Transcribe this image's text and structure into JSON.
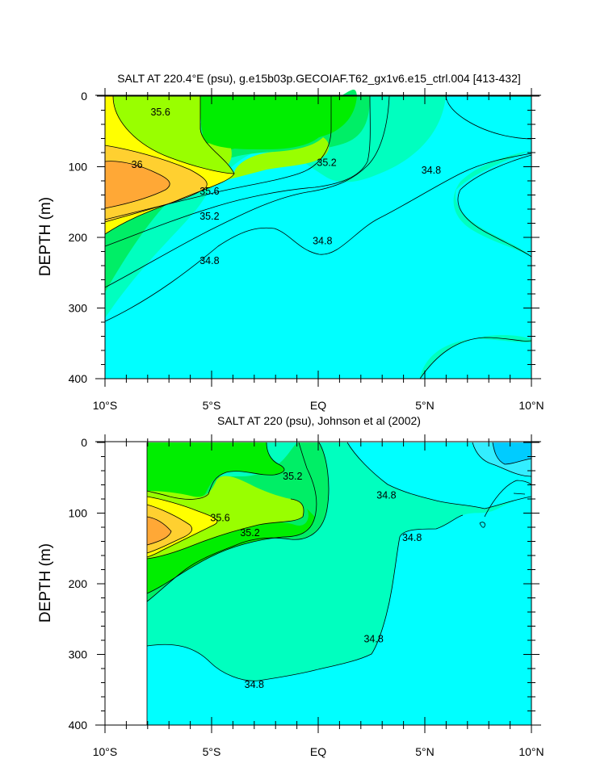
{
  "colors": {
    "lt34_6": "#00ccff",
    "c34_6_34_8": "#00ffff",
    "c34_8_35_0": "#00ffbf",
    "c35_0_35_2": "#00ee66",
    "c35_2_35_4": "#00ee00",
    "c35_4_35_6": "#99ff00",
    "c35_6_35_8": "#ffff00",
    "c35_8_36_0": "#ffd030",
    "gt36_0": "#ffa836",
    "line": "#000000"
  },
  "chart_data": [
    {
      "type": "contour",
      "title": "SALT AT 220.4°E (psu), g.e15b03p.GECOIAF.T62_gx1v6.e15_ctrl.004 [413-432]",
      "ylabel": "DEPTH (m)",
      "xlabel": "",
      "xlim": [
        -10,
        10
      ],
      "ylim": [
        400,
        0
      ],
      "x_ticks": [
        "10°S",
        "5°S",
        "EQ",
        "5°N",
        "10°N"
      ],
      "y_ticks": [
        "0",
        "100",
        "200",
        "300",
        "400"
      ],
      "contour_interval": 0.2,
      "contour_labels": [
        {
          "text": "35.6",
          "lon": -7.4,
          "depth": 23
        },
        {
          "text": "36",
          "lon": -8.5,
          "depth": 97
        },
        {
          "text": "35.6",
          "lon": -5.1,
          "depth": 135
        },
        {
          "text": "35.2",
          "lon": -5.1,
          "depth": 170
        },
        {
          "text": "35.2",
          "lon": 0.4,
          "depth": 94
        },
        {
          "text": "34.8",
          "lon": 5.3,
          "depth": 105
        },
        {
          "text": "34.8",
          "lon": 0.2,
          "depth": 205
        },
        {
          "text": "34.8",
          "lon": -5.1,
          "depth": 233
        }
      ]
    },
    {
      "type": "contour",
      "title": "SALT AT 220 (psu), Johnson et al (2002)",
      "ylabel": "DEPTH (m)",
      "xlabel": "",
      "xlim": [
        -10,
        10
      ],
      "ylim": [
        400,
        0
      ],
      "data_xrange": [
        -8,
        10
      ],
      "x_ticks": [
        "10°S",
        "5°S",
        "EQ",
        "5°N",
        "10°N"
      ],
      "y_ticks": [
        "0",
        "100",
        "200",
        "300",
        "400"
      ],
      "contour_interval": 0.2,
      "contour_labels": [
        {
          "text": "35.2",
          "lon": -1.2,
          "depth": 48
        },
        {
          "text": "35.6",
          "lon": -4.6,
          "depth": 107
        },
        {
          "text": "35.2",
          "lon": -3.2,
          "depth": 128
        },
        {
          "text": "34.8",
          "lon": 3.2,
          "depth": 75
        },
        {
          "text": "34.8",
          "lon": 4.4,
          "depth": 135
        },
        {
          "text": "34.8",
          "lon": 2.6,
          "depth": 278
        },
        {
          "text": "34.8",
          "lon": -3.0,
          "depth": 343
        }
      ]
    }
  ]
}
